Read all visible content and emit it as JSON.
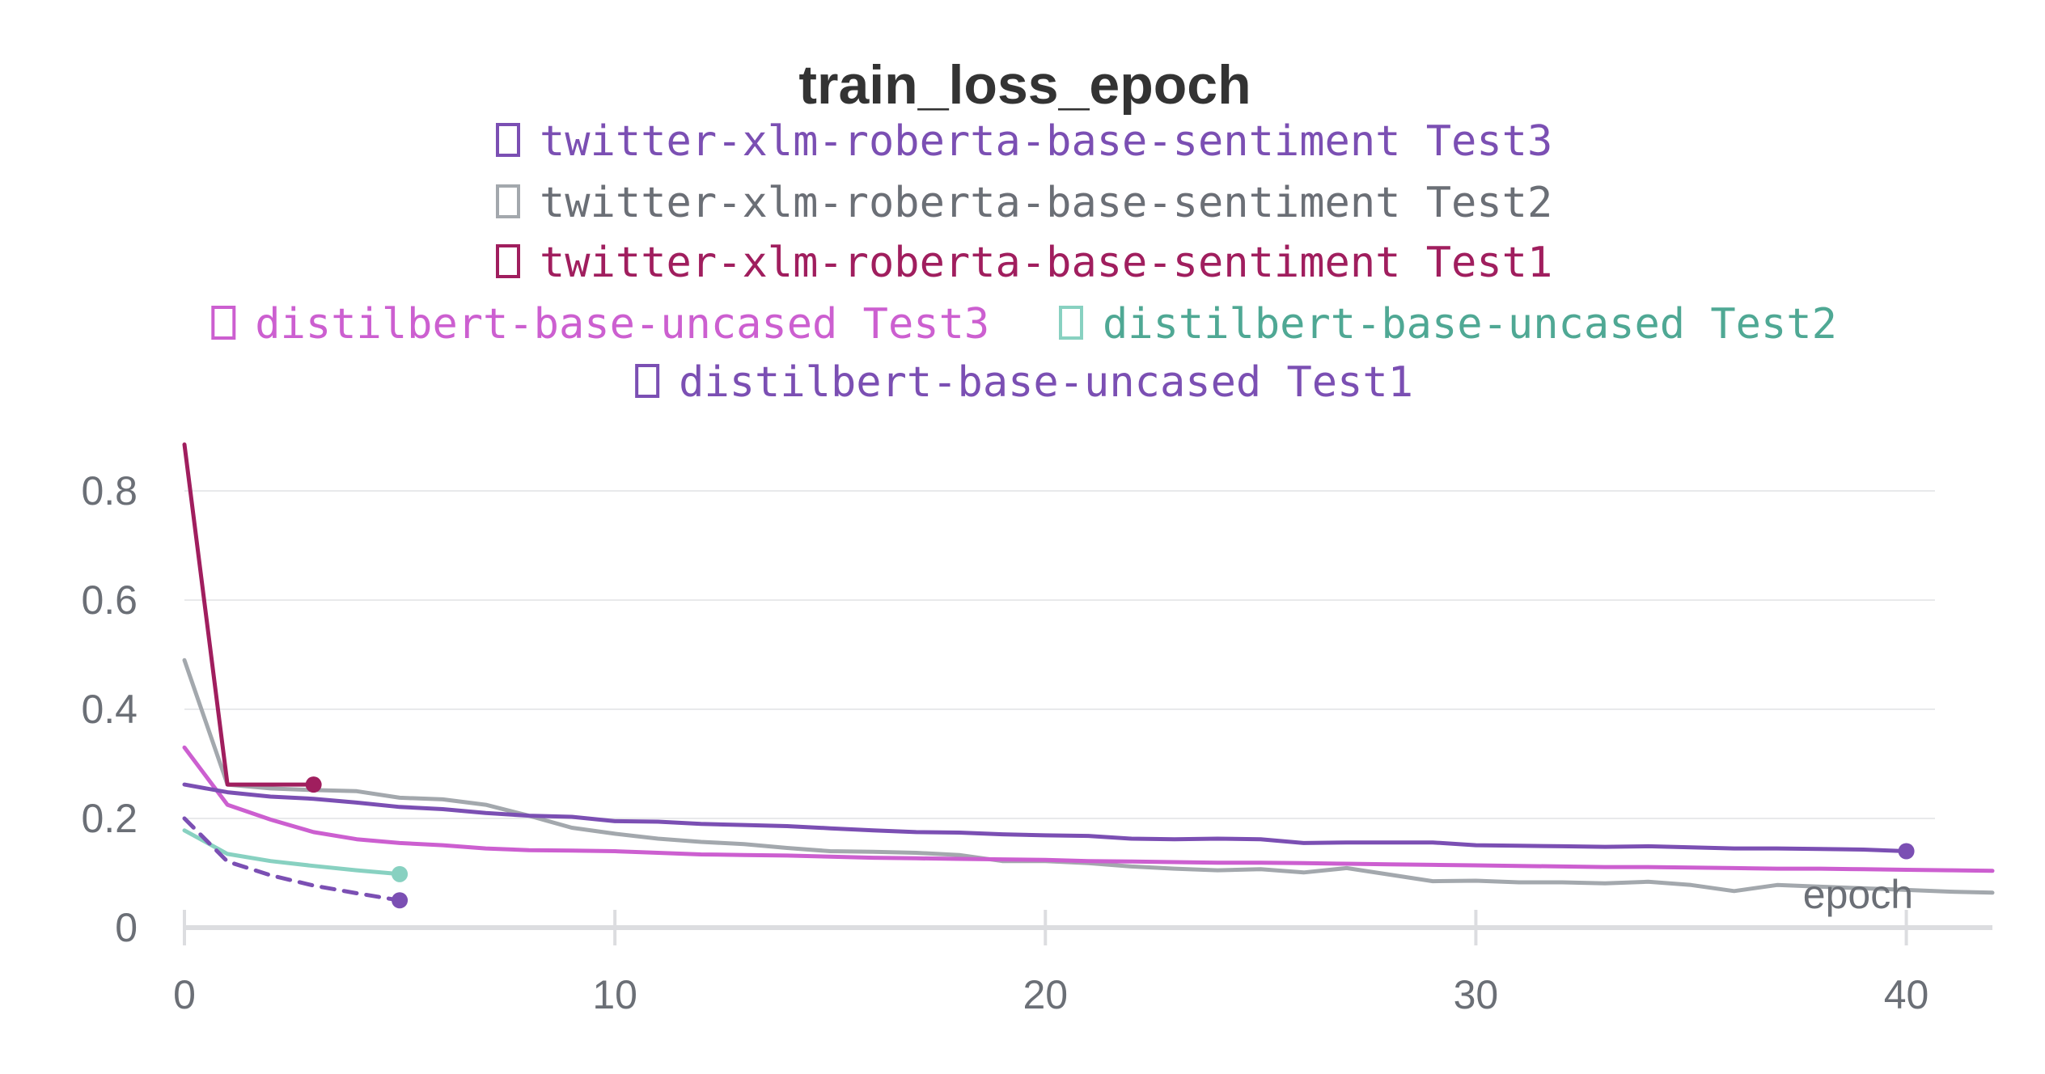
{
  "chart_data": {
    "type": "line",
    "title": "train_loss_epoch",
    "xlabel": "epoch",
    "ylabel": "",
    "xlim": [
      0,
      42
    ],
    "ylim": [
      0,
      0.88
    ],
    "x_ticks": [
      "0",
      "10",
      "20",
      "30",
      "40"
    ],
    "y_ticks": [
      "0",
      "0.2",
      "0.4",
      "0.6",
      "0.8"
    ],
    "grid": true,
    "legend_position": "top-center",
    "series": [
      {
        "name": "twitter-xlm-roberta-base-sentiment Test3",
        "color": "#7b4fb3",
        "dashed": false,
        "end_marker": true,
        "x": [
          0,
          1,
          2,
          3,
          4,
          5,
          6,
          7,
          8,
          9,
          10,
          11,
          12,
          13,
          14,
          15,
          16,
          17,
          18,
          19,
          20,
          21,
          22,
          23,
          24,
          25,
          26,
          27,
          28,
          29,
          30,
          31,
          32,
          33,
          34,
          35,
          36,
          37,
          38,
          39,
          40
        ],
        "y": [
          0.262,
          0.248,
          0.24,
          0.236,
          0.229,
          0.221,
          0.217,
          0.21,
          0.205,
          0.203,
          0.195,
          0.194,
          0.19,
          0.188,
          0.186,
          0.182,
          0.178,
          0.175,
          0.174,
          0.171,
          0.169,
          0.168,
          0.163,
          0.162,
          0.163,
          0.162,
          0.155,
          0.156,
          0.156,
          0.156,
          0.151,
          0.15,
          0.149,
          0.148,
          0.149,
          0.147,
          0.145,
          0.145,
          0.144,
          0.143,
          0.14
        ]
      },
      {
        "name": "twitter-xlm-roberta-base-sentiment Test2",
        "color": "#a3a8ad",
        "dashed": false,
        "end_marker": false,
        "x": [
          0,
          1,
          2,
          3,
          4,
          5,
          6,
          7,
          8,
          9,
          10,
          11,
          12,
          13,
          14,
          15,
          16,
          17,
          18,
          19,
          20,
          21,
          22,
          23,
          24,
          25,
          26,
          27,
          28,
          29,
          30,
          31,
          32,
          33,
          34,
          35,
          36,
          37,
          38,
          39,
          40,
          41,
          42
        ],
        "y": [
          0.49,
          0.262,
          0.255,
          0.252,
          0.25,
          0.238,
          0.235,
          0.225,
          0.205,
          0.183,
          0.172,
          0.163,
          0.157,
          0.153,
          0.146,
          0.14,
          0.139,
          0.137,
          0.133,
          0.122,
          0.122,
          0.118,
          0.112,
          0.108,
          0.105,
          0.107,
          0.101,
          0.109,
          0.097,
          0.085,
          0.086,
          0.083,
          0.083,
          0.081,
          0.084,
          0.078,
          0.067,
          0.078,
          0.075,
          0.072,
          0.069,
          0.066,
          0.064
        ]
      },
      {
        "name": "twitter-xlm-roberta-base-sentiment Test1",
        "color": "#a01e5e",
        "dashed": false,
        "end_marker": true,
        "x": [
          0,
          1,
          2,
          3
        ],
        "y": [
          0.885,
          0.262,
          0.262,
          0.262
        ]
      },
      {
        "name": "distilbert-base-uncased Test3",
        "color": "#cc5fd0",
        "dashed": false,
        "end_marker": false,
        "x": [
          0,
          1,
          2,
          3,
          4,
          5,
          6,
          7,
          8,
          9,
          10,
          11,
          12,
          13,
          14,
          15,
          16,
          17,
          18,
          19,
          20,
          21,
          22,
          23,
          24,
          25,
          26,
          27,
          28,
          29,
          30,
          31,
          32,
          33,
          34,
          35,
          36,
          37,
          38,
          39,
          40,
          41,
          42
        ],
        "y": [
          0.33,
          0.225,
          0.198,
          0.175,
          0.162,
          0.155,
          0.151,
          0.145,
          0.142,
          0.141,
          0.14,
          0.137,
          0.134,
          0.133,
          0.132,
          0.13,
          0.128,
          0.127,
          0.126,
          0.125,
          0.124,
          0.122,
          0.121,
          0.12,
          0.119,
          0.119,
          0.118,
          0.117,
          0.116,
          0.115,
          0.114,
          0.113,
          0.112,
          0.111,
          0.111,
          0.11,
          0.109,
          0.108,
          0.108,
          0.107,
          0.106,
          0.105,
          0.104
        ]
      },
      {
        "name": "distilbert-base-uncased Test2",
        "color": "#88d1c1",
        "dashed": false,
        "end_marker": true,
        "x": [
          0,
          1,
          2,
          3,
          4,
          5
        ],
        "y": [
          0.178,
          0.135,
          0.122,
          0.113,
          0.105,
          0.098
        ]
      },
      {
        "name": "distilbert-base-uncased Test1",
        "color": "#7b4fb3",
        "dashed": true,
        "end_marker": true,
        "x": [
          0,
          1,
          2,
          3,
          4,
          5
        ],
        "y": [
          0.2,
          0.121,
          0.096,
          0.077,
          0.063,
          0.05
        ]
      }
    ]
  },
  "legend": [
    {
      "label": "twitter-xlm-roberta-base-sentiment Test3",
      "color": "#7b4fb3",
      "text_color": "#7b4fb3",
      "row": 0
    },
    {
      "label": "twitter-xlm-roberta-base-sentiment Test2",
      "color": "#a3a8ad",
      "text_color": "#6b6f76",
      "row": 1
    },
    {
      "label": "twitter-xlm-roberta-base-sentiment Test1",
      "color": "#a01e5e",
      "text_color": "#a01e5e",
      "row": 2
    },
    {
      "label": "distilbert-base-uncased Test3",
      "color": "#cc5fd0",
      "text_color": "#cc5fd0",
      "row": 3
    },
    {
      "label": "distilbert-base-uncased Test2",
      "color": "#88d1c1",
      "text_color": "#4fa894",
      "row": 3
    },
    {
      "label": "distilbert-base-uncased Test1",
      "color": "#7b4fb3",
      "text_color": "#7b4fb3",
      "row": 4
    }
  ]
}
